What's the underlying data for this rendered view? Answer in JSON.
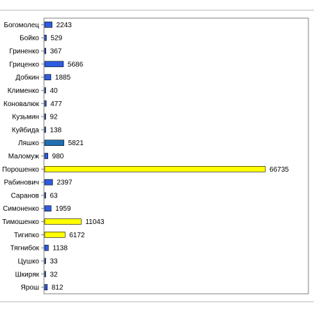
{
  "chart_data": {
    "type": "bar",
    "orientation": "horizontal",
    "title": "",
    "xlabel": "",
    "ylabel": "",
    "grid": false,
    "legend": "none",
    "xlim": [
      0,
      80000
    ],
    "categories": [
      "Богомолец",
      "Бойко",
      "Гриненко",
      "Гриценко",
      "Добкин",
      "Клименко",
      "Коновалюк",
      "Кузьмин",
      "Куйбида",
      "Ляшко",
      "Маломуж",
      "Порошенко",
      "Рабинович",
      "Саранов",
      "Симоненко",
      "Тимошенко",
      "Тигипко",
      "Тягнибок",
      "Цушко",
      "Шкиряк",
      "Ярош"
    ],
    "values": [
      2243,
      529,
      367,
      5686,
      1885,
      40,
      477,
      92,
      138,
      5821,
      980,
      66735,
      2397,
      63,
      1959,
      11043,
      6172,
      1138,
      33,
      32,
      812
    ],
    "value_labels": [
      "2243",
      "529",
      "367",
      "5686",
      "1885",
      "40",
      "477",
      "92",
      "138",
      "5821",
      "980",
      "66735",
      "2397",
      "63",
      "1959",
      "11043",
      "6172",
      "1138",
      "33",
      "32",
      "812"
    ],
    "bar_colors": [
      "#2e5be0",
      "#2e5be0",
      "#2e5be0",
      "#2e5be0",
      "#2e5be0",
      "#2e5be0",
      "#2e5be0",
      "#2e5be0",
      "#2e5be0",
      "#1f6fb4",
      "#2e5be0",
      "#ffff00",
      "#2e5be0",
      "#2e5be0",
      "#2e5be0",
      "#ffff00",
      "#ffff00",
      "#2e5be0",
      "#2e5be0",
      "#2e5be0",
      "#2e5be0"
    ]
  }
}
